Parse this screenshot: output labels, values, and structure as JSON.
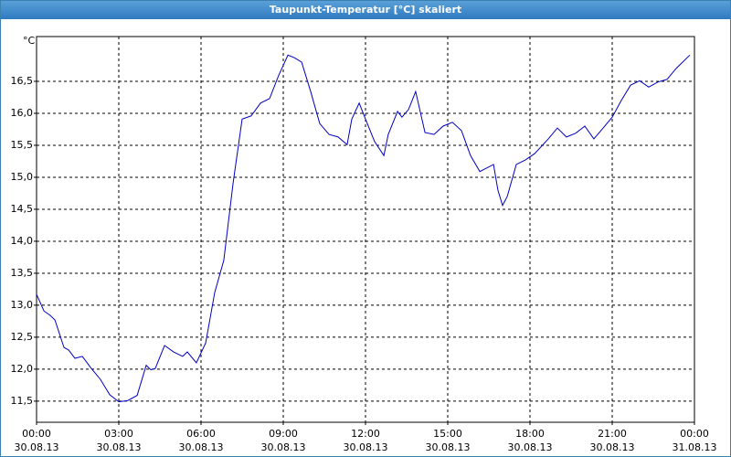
{
  "window_title": "Taupunkt-Temperatur [°C] skaliert",
  "chart_data": {
    "type": "line",
    "y_unit": "°C",
    "x": [
      0,
      0.27,
      0.5,
      0.67,
      1.0,
      1.17,
      1.4,
      1.67,
      2.0,
      2.33,
      2.67,
      3.0,
      3.33,
      3.67,
      4.0,
      4.17,
      4.33,
      4.67,
      5.0,
      5.33,
      5.5,
      5.83,
      6.17,
      6.5,
      6.83,
      7.17,
      7.5,
      7.83,
      8.17,
      8.5,
      8.83,
      9.17,
      9.4,
      9.67,
      10.0,
      10.33,
      10.67,
      11.0,
      11.33,
      11.5,
      11.77,
      12.0,
      12.33,
      12.67,
      12.83,
      13.17,
      13.33,
      13.57,
      13.83,
      14.17,
      14.5,
      14.83,
      15.17,
      15.5,
      15.83,
      16.17,
      16.67,
      16.83,
      17.0,
      17.17,
      17.5,
      17.83,
      18.17,
      18.67,
      19.0,
      19.33,
      19.67,
      20.0,
      20.33,
      20.67,
      21.0,
      21.33,
      21.67,
      22.0,
      22.33,
      22.67,
      23.0,
      23.33,
      23.83
    ],
    "series": [
      {
        "color": "#0000c0",
        "values": [
          13.17,
          12.91,
          12.84,
          12.77,
          12.34,
          12.3,
          12.17,
          12.2,
          12.01,
          11.84,
          11.6,
          11.49,
          11.51,
          11.59,
          12.06,
          11.99,
          12.01,
          12.37,
          12.27,
          12.2,
          12.27,
          12.1,
          12.41,
          13.2,
          13.7,
          14.91,
          15.91,
          15.96,
          16.16,
          16.23,
          16.59,
          16.91,
          16.87,
          16.8,
          16.34,
          15.84,
          15.67,
          15.63,
          15.51,
          15.91,
          16.16,
          15.91,
          15.56,
          15.34,
          15.67,
          16.03,
          15.94,
          16.06,
          16.34,
          15.7,
          15.67,
          15.8,
          15.86,
          15.73,
          15.34,
          15.09,
          15.2,
          14.8,
          14.56,
          14.7,
          15.2,
          15.27,
          15.37,
          15.6,
          15.77,
          15.63,
          15.69,
          15.8,
          15.6,
          15.77,
          15.94,
          16.2,
          16.44,
          16.51,
          16.41,
          16.49,
          16.53,
          16.7,
          16.91
        ]
      }
    ],
    "xlim": [
      0,
      24
    ],
    "xticks": [
      {
        "value": 0,
        "label": "00:00",
        "date": "30.08.13"
      },
      {
        "value": 3,
        "label": "03:00",
        "date": "30.08.13"
      },
      {
        "value": 6,
        "label": "06:00",
        "date": "30.08.13"
      },
      {
        "value": 9,
        "label": "09:00",
        "date": "30.08.13"
      },
      {
        "value": 12,
        "label": "12:00",
        "date": "30.08.13"
      },
      {
        "value": 15,
        "label": "15:00",
        "date": "30.08.13"
      },
      {
        "value": 18,
        "label": "18:00",
        "date": "30.08.13"
      },
      {
        "value": 21,
        "label": "21:00",
        "date": "30.08.13"
      },
      {
        "value": 24,
        "label": "00:00",
        "date": "31.08.13"
      }
    ],
    "ylim": [
      11.17,
      17.2
    ],
    "yticks": [
      {
        "value": 11.5,
        "label": "11,5"
      },
      {
        "value": 12,
        "label": "12,0"
      },
      {
        "value": 12.5,
        "label": "12,5"
      },
      {
        "value": 13,
        "label": "13,0"
      },
      {
        "value": 13.5,
        "label": "13,5"
      },
      {
        "value": 14,
        "label": "14,0"
      },
      {
        "value": 14.5,
        "label": "14,5"
      },
      {
        "value": 15,
        "label": "15,0"
      },
      {
        "value": 15.5,
        "label": "15,5"
      },
      {
        "value": 16,
        "label": "16,0"
      },
      {
        "value": 16.5,
        "label": "16,5"
      }
    ],
    "grid": true
  }
}
